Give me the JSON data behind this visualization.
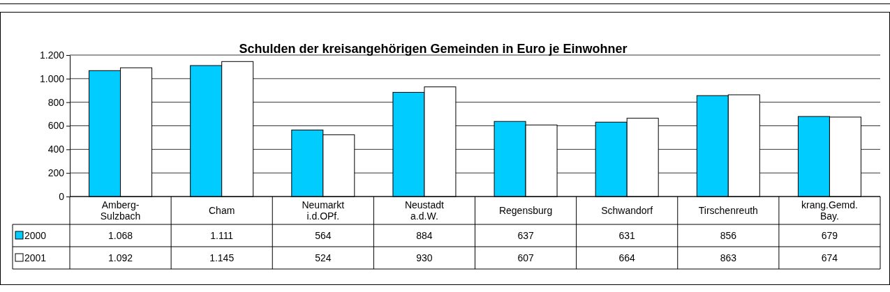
{
  "chart_data": {
    "type": "bar",
    "title": "Schulden der kreisangehörigen Gemeinden in Euro je Einwohner",
    "categories": [
      "Amberg-Sulzbach",
      "Cham",
      "Neumarkt i.d.OPf.",
      "Neustadt a.d.W.",
      "Regensburg",
      "Schwandorf",
      "Tirschenreuth",
      "krang.Gemd. Bay."
    ],
    "series": [
      {
        "name": "2000",
        "color": "#00ccff",
        "values": [
          1068,
          1111,
          564,
          884,
          637,
          631,
          856,
          679
        ],
        "value_labels": [
          "1.068",
          "1.111",
          "564",
          "884",
          "637",
          "631",
          "856",
          "679"
        ]
      },
      {
        "name": "2001",
        "color": "#ffffff",
        "values": [
          1092,
          1145,
          524,
          930,
          607,
          664,
          863,
          674
        ],
        "value_labels": [
          "1.092",
          "1.145",
          "524",
          "930",
          "607",
          "664",
          "863",
          "674"
        ]
      }
    ],
    "ylim": [
      0,
      1200
    ],
    "yticks": [
      {
        "value": 0,
        "label": "0"
      },
      {
        "value": 200,
        "label": "200"
      },
      {
        "value": 400,
        "label": "400"
      },
      {
        "value": 600,
        "label": "600"
      },
      {
        "value": 800,
        "label": "800"
      },
      {
        "value": 1000,
        "label": "1.000"
      },
      {
        "value": 1200,
        "label": "1.200"
      }
    ],
    "grid": "y",
    "legend": "bottom left"
  }
}
